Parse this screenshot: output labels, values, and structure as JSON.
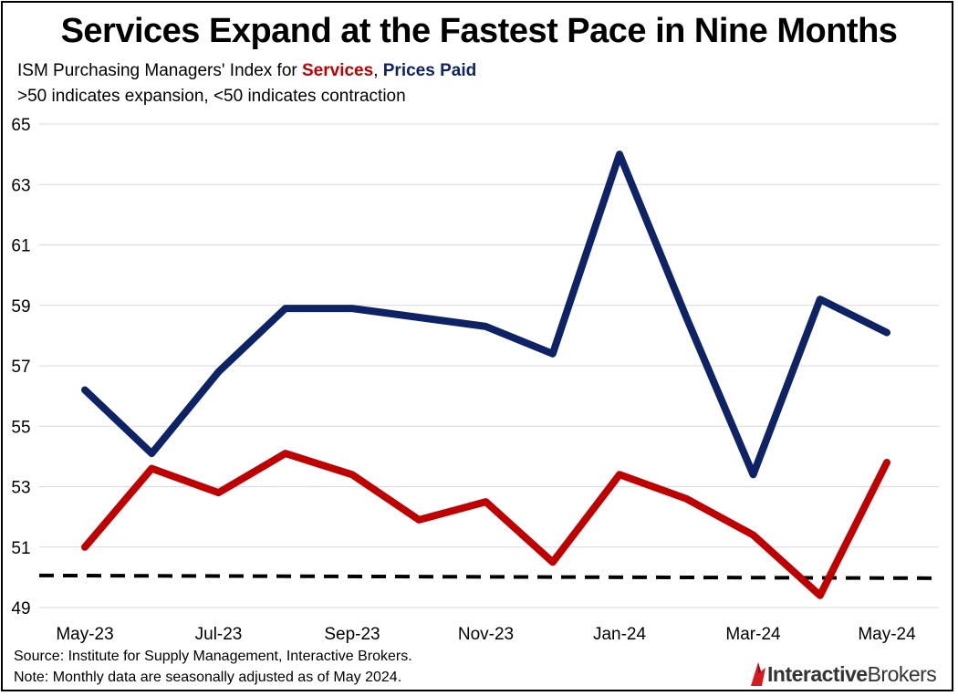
{
  "title": "Services Expand at the Fastest Pace in Nine Months",
  "subtitle": {
    "prefix": "ISM Purchasing Managers' Index for ",
    "services_label": "Services",
    "separator": ", ",
    "prices_label": "Prices Paid"
  },
  "note": ">50 indicates expansion, <50 indicates contraction",
  "source": "Source: Institute for Supply Management, Interactive Brokers.",
  "footnote": "Note: Monthly data are seasonally adjusted as of May 2024.",
  "logo": {
    "part1": "Interactive",
    "part2": "Brokers"
  },
  "colors": {
    "services": "#c00000",
    "prices_paid": "#0d2366",
    "reference": "#000000",
    "grid": "#d9d9d9",
    "logo_red": "#d71920"
  },
  "chart_data": {
    "type": "line",
    "categories": [
      "May-23",
      "Jun-23",
      "Jul-23",
      "Aug-23",
      "Sep-23",
      "Oct-23",
      "Nov-23",
      "Dec-23",
      "Jan-24",
      "Feb-24",
      "Mar-24",
      "Apr-24",
      "May-24"
    ],
    "x_tick_labels": [
      "May-23",
      "Jul-23",
      "Sep-23",
      "Nov-23",
      "Jan-24",
      "Mar-24",
      "May-24"
    ],
    "series": [
      {
        "name": "Services",
        "values": [
          51.0,
          53.6,
          52.8,
          54.1,
          53.4,
          51.9,
          52.5,
          50.5,
          53.4,
          52.6,
          51.4,
          49.4,
          53.8
        ]
      },
      {
        "name": "Prices Paid",
        "values": [
          56.2,
          54.1,
          56.8,
          58.9,
          58.9,
          58.6,
          58.3,
          57.4,
          64.0,
          58.6,
          53.4,
          59.2,
          58.1
        ]
      }
    ],
    "reference_line": {
      "y": 50,
      "style": "dashed"
    },
    "ylim": [
      49,
      65
    ],
    "yticks": [
      49,
      51,
      53,
      55,
      57,
      59,
      61,
      63,
      65
    ],
    "xlabel": "",
    "ylabel": "",
    "grid": true,
    "legend": "in subtitle"
  }
}
